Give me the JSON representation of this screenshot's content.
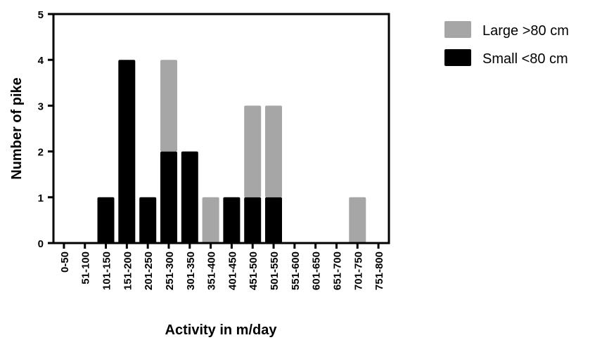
{
  "chart_data": {
    "type": "bar",
    "stacked": true,
    "title": "",
    "xlabel": "Activity in m/day",
    "ylabel": "Number of pike",
    "ylim": [
      0,
      5
    ],
    "yticks": [
      0,
      1,
      2,
      3,
      4,
      5
    ],
    "grid": false,
    "legend_position": "top-right",
    "categories": [
      "0-50",
      "51-100",
      "101-150",
      "151-200",
      "201-250",
      "251-300",
      "301-350",
      "351-400",
      "401-450",
      "451-500",
      "501-550",
      "551-600",
      "601-650",
      "651-700",
      "701-750",
      "751-800"
    ],
    "series": [
      {
        "name": "Small <80 cm",
        "color": "#000000",
        "values": [
          0,
          0,
          1,
          4,
          1,
          2,
          2,
          0,
          1,
          1,
          1,
          0,
          0,
          0,
          0,
          0
        ]
      },
      {
        "name": "Large >80 cm",
        "color": "#a6a6a6",
        "values": [
          0,
          0,
          0,
          0,
          0,
          2,
          0,
          1,
          0,
          2,
          2,
          0,
          0,
          0,
          1,
          0
        ]
      }
    ],
    "legend_order": [
      1,
      0
    ]
  }
}
